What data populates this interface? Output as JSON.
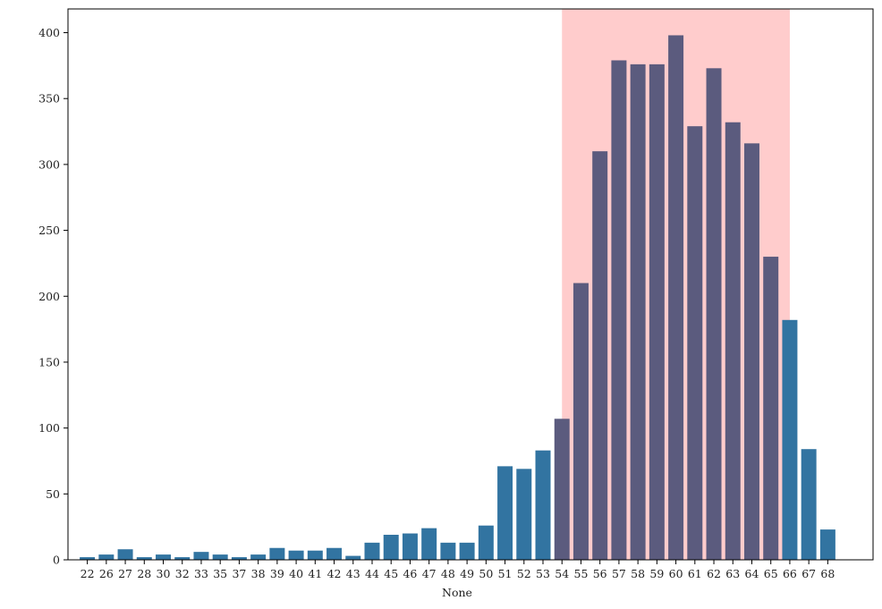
{
  "chart_data": {
    "type": "bar",
    "xlabel": "None",
    "ylabel": "",
    "ylim": [
      0,
      418
    ],
    "yticks": [
      0,
      50,
      100,
      150,
      200,
      250,
      300,
      350,
      400
    ],
    "grid": false,
    "categories": [
      "22",
      "26",
      "27",
      "28",
      "30",
      "32",
      "33",
      "35",
      "37",
      "38",
      "39",
      "40",
      "41",
      "42",
      "43",
      "44",
      "45",
      "46",
      "47",
      "48",
      "49",
      "50",
      "51",
      "52",
      "53",
      "54",
      "55",
      "56",
      "57",
      "58",
      "59",
      "60",
      "61",
      "62",
      "63",
      "64",
      "65",
      "66",
      "67",
      "68"
    ],
    "values": [
      2,
      4,
      8,
      2,
      4,
      2,
      6,
      4,
      2,
      4,
      9,
      7,
      7,
      9,
      3,
      13,
      19,
      20,
      24,
      13,
      13,
      26,
      71,
      69,
      83,
      107,
      210,
      310,
      379,
      376,
      376,
      398,
      329,
      373,
      332,
      316,
      230,
      182,
      84,
      23
    ],
    "highlight_span": {
      "from_category": "54",
      "to_category": "66",
      "color": "#ffcccc"
    },
    "colors": {
      "bar": "#3274a1",
      "bar_highlighted": "#5b5b7e",
      "axes": "#000000"
    }
  }
}
